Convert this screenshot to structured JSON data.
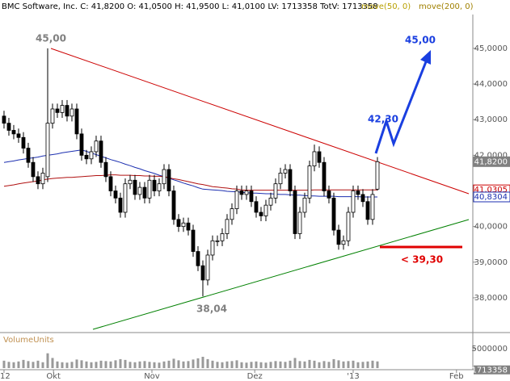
{
  "chart_data": {
    "type": "candlestick",
    "title": "BMC Software, Inc. C: 41,8200 O: 41,0500 H: 41,9500 L: 41,0100 LV: 1713358 TotV: 1713358",
    "indicators": [
      {
        "label": "move(50, 0)",
        "color": "#b8a000"
      },
      {
        "label": "move(200, 0)",
        "color": "#a08000"
      }
    ],
    "open": [
      43.1,
      42.9,
      42.7,
      42.6,
      42.5,
      42.2,
      41.8,
      41.4,
      41.2,
      41.4,
      42.9,
      43.3,
      43.2,
      43.4,
      43.1,
      43.3,
      42.6,
      42.0,
      41.9,
      42.1,
      42.4,
      41.8,
      41.4,
      41.0,
      40.8,
      40.4,
      41.2,
      41.3,
      40.9,
      41.1,
      40.8,
      41.3,
      41.0,
      41.2,
      41.6,
      41.0,
      40.2,
      40.0,
      40.1,
      39.9,
      39.3,
      38.9,
      38.5,
      39.2,
      39.6,
      39.6,
      39.8,
      40.2,
      40.5,
      41.0,
      40.9,
      41.0,
      40.7,
      40.4,
      40.3,
      40.6,
      40.8,
      41.2,
      41.5,
      41.6,
      41.0,
      39.8,
      40.4,
      40.8,
      41.7,
      42.1,
      41.8,
      41.0,
      40.8,
      39.9,
      39.5,
      39.6,
      40.4,
      41.0,
      40.9,
      40.7,
      40.2,
      41.05
    ],
    "high": [
      43.25,
      43.05,
      42.85,
      42.75,
      42.65,
      42.35,
      41.95,
      41.55,
      41.65,
      45.0,
      43.45,
      43.45,
      43.55,
      43.55,
      43.45,
      43.45,
      42.75,
      42.15,
      42.25,
      42.55,
      42.55,
      41.95,
      41.55,
      41.15,
      40.95,
      41.35,
      41.45,
      41.45,
      41.25,
      41.25,
      41.45,
      41.45,
      41.35,
      41.75,
      41.75,
      41.15,
      40.35,
      40.25,
      40.25,
      40.05,
      39.45,
      39.05,
      39.35,
      39.75,
      39.75,
      39.95,
      40.35,
      40.65,
      41.15,
      41.15,
      41.15,
      41.15,
      40.85,
      40.55,
      40.75,
      40.95,
      41.35,
      41.65,
      41.75,
      41.75,
      41.15,
      40.55,
      40.95,
      41.85,
      42.3,
      42.25,
      41.95,
      41.15,
      40.95,
      40.05,
      39.75,
      40.55,
      41.15,
      41.15,
      41.05,
      40.85,
      41.05,
      41.95
    ],
    "low": [
      42.75,
      42.55,
      42.45,
      42.35,
      42.05,
      41.65,
      41.25,
      41.05,
      41.05,
      41.25,
      42.75,
      43.05,
      43.05,
      42.95,
      42.95,
      42.45,
      41.85,
      41.75,
      41.75,
      41.95,
      41.65,
      41.25,
      40.85,
      40.65,
      40.25,
      40.25,
      41.05,
      40.75,
      40.75,
      40.65,
      40.65,
      40.85,
      40.85,
      41.05,
      40.85,
      40.05,
      39.85,
      39.85,
      39.75,
      39.15,
      38.75,
      38.04,
      38.35,
      39.05,
      39.45,
      39.45,
      39.65,
      40.05,
      40.35,
      40.75,
      40.75,
      40.55,
      40.25,
      40.15,
      40.15,
      40.45,
      40.65,
      41.05,
      41.35,
      40.85,
      39.65,
      39.65,
      40.25,
      40.65,
      41.55,
      41.65,
      40.85,
      40.65,
      39.75,
      39.35,
      39.35,
      39.45,
      40.25,
      40.75,
      40.55,
      40.05,
      40.05,
      41.01
    ],
    "close": [
      42.9,
      42.7,
      42.6,
      42.5,
      42.2,
      41.8,
      41.4,
      41.2,
      41.5,
      42.9,
      43.3,
      43.2,
      43.4,
      43.1,
      43.3,
      42.6,
      42.0,
      41.9,
      42.1,
      42.4,
      41.8,
      41.4,
      41.0,
      40.8,
      40.4,
      41.2,
      41.3,
      40.9,
      41.1,
      40.8,
      41.3,
      41.0,
      41.2,
      41.6,
      41.0,
      40.2,
      40.0,
      40.1,
      39.9,
      39.3,
      38.9,
      38.5,
      39.2,
      39.6,
      39.6,
      39.8,
      40.2,
      40.5,
      41.0,
      40.9,
      41.0,
      40.7,
      40.4,
      40.3,
      40.6,
      40.8,
      41.2,
      41.5,
      41.6,
      41.0,
      39.8,
      40.4,
      40.8,
      41.7,
      42.1,
      41.8,
      41.0,
      40.8,
      39.9,
      39.5,
      39.6,
      40.4,
      41.0,
      40.9,
      40.7,
      40.2,
      40.9,
      41.82
    ],
    "series": [
      {
        "color": "#1c2fb0",
        "values": [
          41.8,
          41.82,
          41.84,
          41.87,
          41.89,
          41.91,
          41.93,
          41.95,
          41.98,
          42.0,
          42.02,
          42.04,
          42.07,
          42.09,
          42.11,
          42.13,
          42.15,
          42.11,
          42.06,
          42.02,
          41.97,
          41.93,
          41.88,
          41.84,
          41.8,
          41.75,
          41.71,
          41.66,
          41.62,
          41.57,
          41.53,
          41.49,
          41.44,
          41.4,
          41.36,
          41.31,
          41.27,
          41.22,
          41.18,
          41.14,
          41.09,
          41.05,
          41.04,
          41.03,
          41.02,
          41.01,
          40.99,
          40.98,
          40.97,
          40.96,
          40.95,
          40.94,
          40.94,
          40.93,
          40.92,
          40.92,
          40.91,
          40.9,
          40.9,
          40.89,
          40.88,
          40.88,
          40.87,
          40.86,
          40.86,
          40.85,
          40.85,
          40.85,
          40.85,
          40.84,
          40.84,
          40.84,
          40.84,
          40.84,
          40.83,
          40.83,
          40.83,
          40.83
        ]
      },
      {
        "color": "#b01010",
        "values": [
          41.13,
          41.15,
          41.17,
          41.2,
          41.22,
          41.24,
          41.26,
          41.28,
          41.31,
          41.33,
          41.35,
          41.36,
          41.37,
          41.38,
          41.38,
          41.39,
          41.4,
          41.41,
          41.42,
          41.43,
          41.43,
          41.44,
          41.45,
          41.45,
          41.44,
          41.44,
          41.44,
          41.43,
          41.43,
          41.42,
          41.42,
          41.41,
          41.41,
          41.4,
          41.37,
          41.34,
          41.32,
          41.29,
          41.26,
          41.23,
          41.2,
          41.18,
          41.15,
          41.12,
          41.11,
          41.09,
          41.08,
          41.06,
          41.05,
          41.03,
          41.02,
          41.02,
          41.02,
          41.02,
          41.02,
          41.02,
          41.02,
          41.02,
          41.02,
          41.02,
          41.02,
          41.02,
          41.02,
          41.02,
          41.03,
          41.03,
          41.03,
          41.03,
          41.03,
          41.03,
          41.03,
          41.03,
          41.03,
          41.03,
          41.03,
          41.03,
          41.03,
          41.03
        ]
      }
    ],
    "volume": [
      1900000,
      1600000,
      1500000,
      1700000,
      2100000,
      1800000,
      1600000,
      1900000,
      1500000,
      3800000,
      2600000,
      1700000,
      1500000,
      1400000,
      1600000,
      2200000,
      2000000,
      1700000,
      1500000,
      1600000,
      1900000,
      1800000,
      1700000,
      2000000,
      2300000,
      2100000,
      1600000,
      1500000,
      1700000,
      1800000,
      1600000,
      1500000,
      1400000,
      1700000,
      1900000,
      2400000,
      2000000,
      1700000,
      1800000,
      2200000,
      2500000,
      2900000,
      2300000,
      1900000,
      1600000,
      1500000,
      1700000,
      1800000,
      2000000,
      1500000,
      1400000,
      1600000,
      1700000,
      1500000,
      1400000,
      1600000,
      1800000,
      1700000,
      1600000,
      1900000,
      2600000,
      1800000,
      1700000,
      2100000,
      1900000,
      1500000,
      1800000,
      1600000,
      2300000,
      2000000,
      1700000,
      1800000,
      1900000,
      1500000,
      1600000,
      1700000,
      1900000,
      1713358
    ],
    "volume_label": "VolumeUnits",
    "vlim": [
      0,
      8500000
    ],
    "vticks": [
      5000000
    ],
    "ylim": [
      37.07,
      45.95
    ],
    "yticks": [
      {
        "value": 38,
        "label": "38,0000"
      },
      {
        "value": 39,
        "label": "39,0000"
      },
      {
        "value": 40,
        "label": "40,0000"
      },
      {
        "value": 41,
        "label": "41,0000"
      },
      {
        "value": 42,
        "label": "42,0000"
      },
      {
        "value": 43,
        "label": "43,0000"
      },
      {
        "value": 44,
        "label": "44,0000"
      },
      {
        "value": 45,
        "label": "45,0000"
      }
    ],
    "xlim": [
      -0.83,
      96.67
    ],
    "xticks": [
      {
        "value": 0,
        "label": "'12"
      },
      {
        "value": 10.2,
        "label": "Okt"
      },
      {
        "value": 30.5,
        "label": "Nov"
      },
      {
        "value": 51.7,
        "label": "Dez"
      },
      {
        "value": 72,
        "label": "'13"
      },
      {
        "value": 93.3,
        "label": "Feb"
      }
    ],
    "markers": [
      {
        "label": "41,8200",
        "value": 41.82,
        "color": "#808080"
      },
      {
        "label": "41,0305",
        "value": 41.0305,
        "color": "#cc0000"
      },
      {
        "label": "40,8304",
        "value": 40.8304,
        "color": "#1c2fb0"
      }
    ],
    "annotations": [
      "45,00",
      "38,04",
      "42,30",
      "45,00",
      "< 39,30"
    ],
    "grid": false
  }
}
